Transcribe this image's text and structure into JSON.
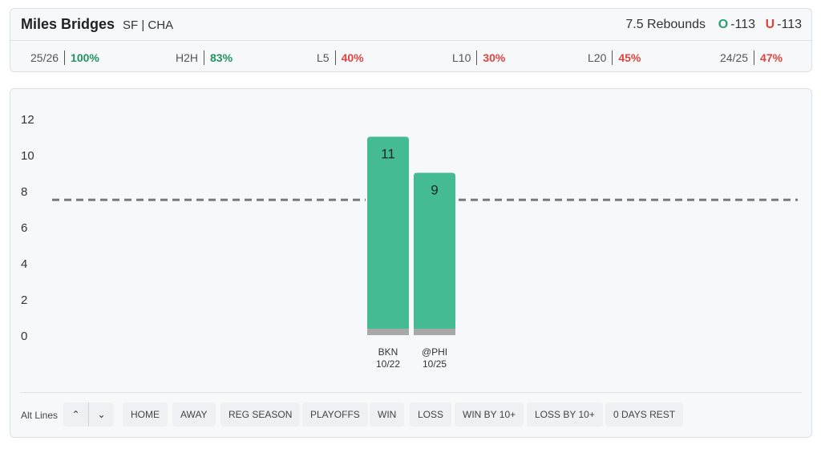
{
  "player": {
    "name": "Miles Bridges",
    "meta": "SF | CHA"
  },
  "prop": {
    "line_label": "7.5 Rebounds",
    "over_letter": "O",
    "over_odds": "-113",
    "under_letter": "U",
    "under_odds": "-113"
  },
  "stats": [
    {
      "label": "25/26",
      "value": "100%",
      "status": "good"
    },
    {
      "label": "H2H",
      "value": "83%",
      "status": "good"
    },
    {
      "label": "L5",
      "value": "40%",
      "status": "bad"
    },
    {
      "label": "L10",
      "value": "30%",
      "status": "bad"
    },
    {
      "label": "L20",
      "value": "45%",
      "status": "bad"
    },
    {
      "label": "24/25",
      "value": "47%",
      "status": "bad"
    }
  ],
  "chart_data": {
    "type": "bar",
    "categories": [
      "BKN 10/22",
      "@PHI 10/25"
    ],
    "opponents": [
      "BKN",
      "@PHI"
    ],
    "dates": [
      "10/22",
      "10/25"
    ],
    "values": [
      11,
      9
    ],
    "threshold": 7.5,
    "yticks": [
      "0",
      "2",
      "4",
      "6",
      "8",
      "10",
      "12"
    ],
    "ylim": [
      0,
      12
    ],
    "grid": false,
    "bar_color": "#45bb93",
    "base_color": "#a8a8a8"
  },
  "toolbar": {
    "alt_lines_label": "Alt Lines",
    "up_icon": "chevron-up-icon",
    "down_icon": "chevron-down-icon",
    "up_glyph": "⌃",
    "down_glyph": "⌄",
    "filters": [
      "HOME",
      "AWAY",
      "REG SEASON",
      "PLAYOFFS",
      "WIN",
      "LOSS",
      "WIN BY 10+",
      "LOSS BY 10+",
      "0 DAYS REST"
    ]
  }
}
